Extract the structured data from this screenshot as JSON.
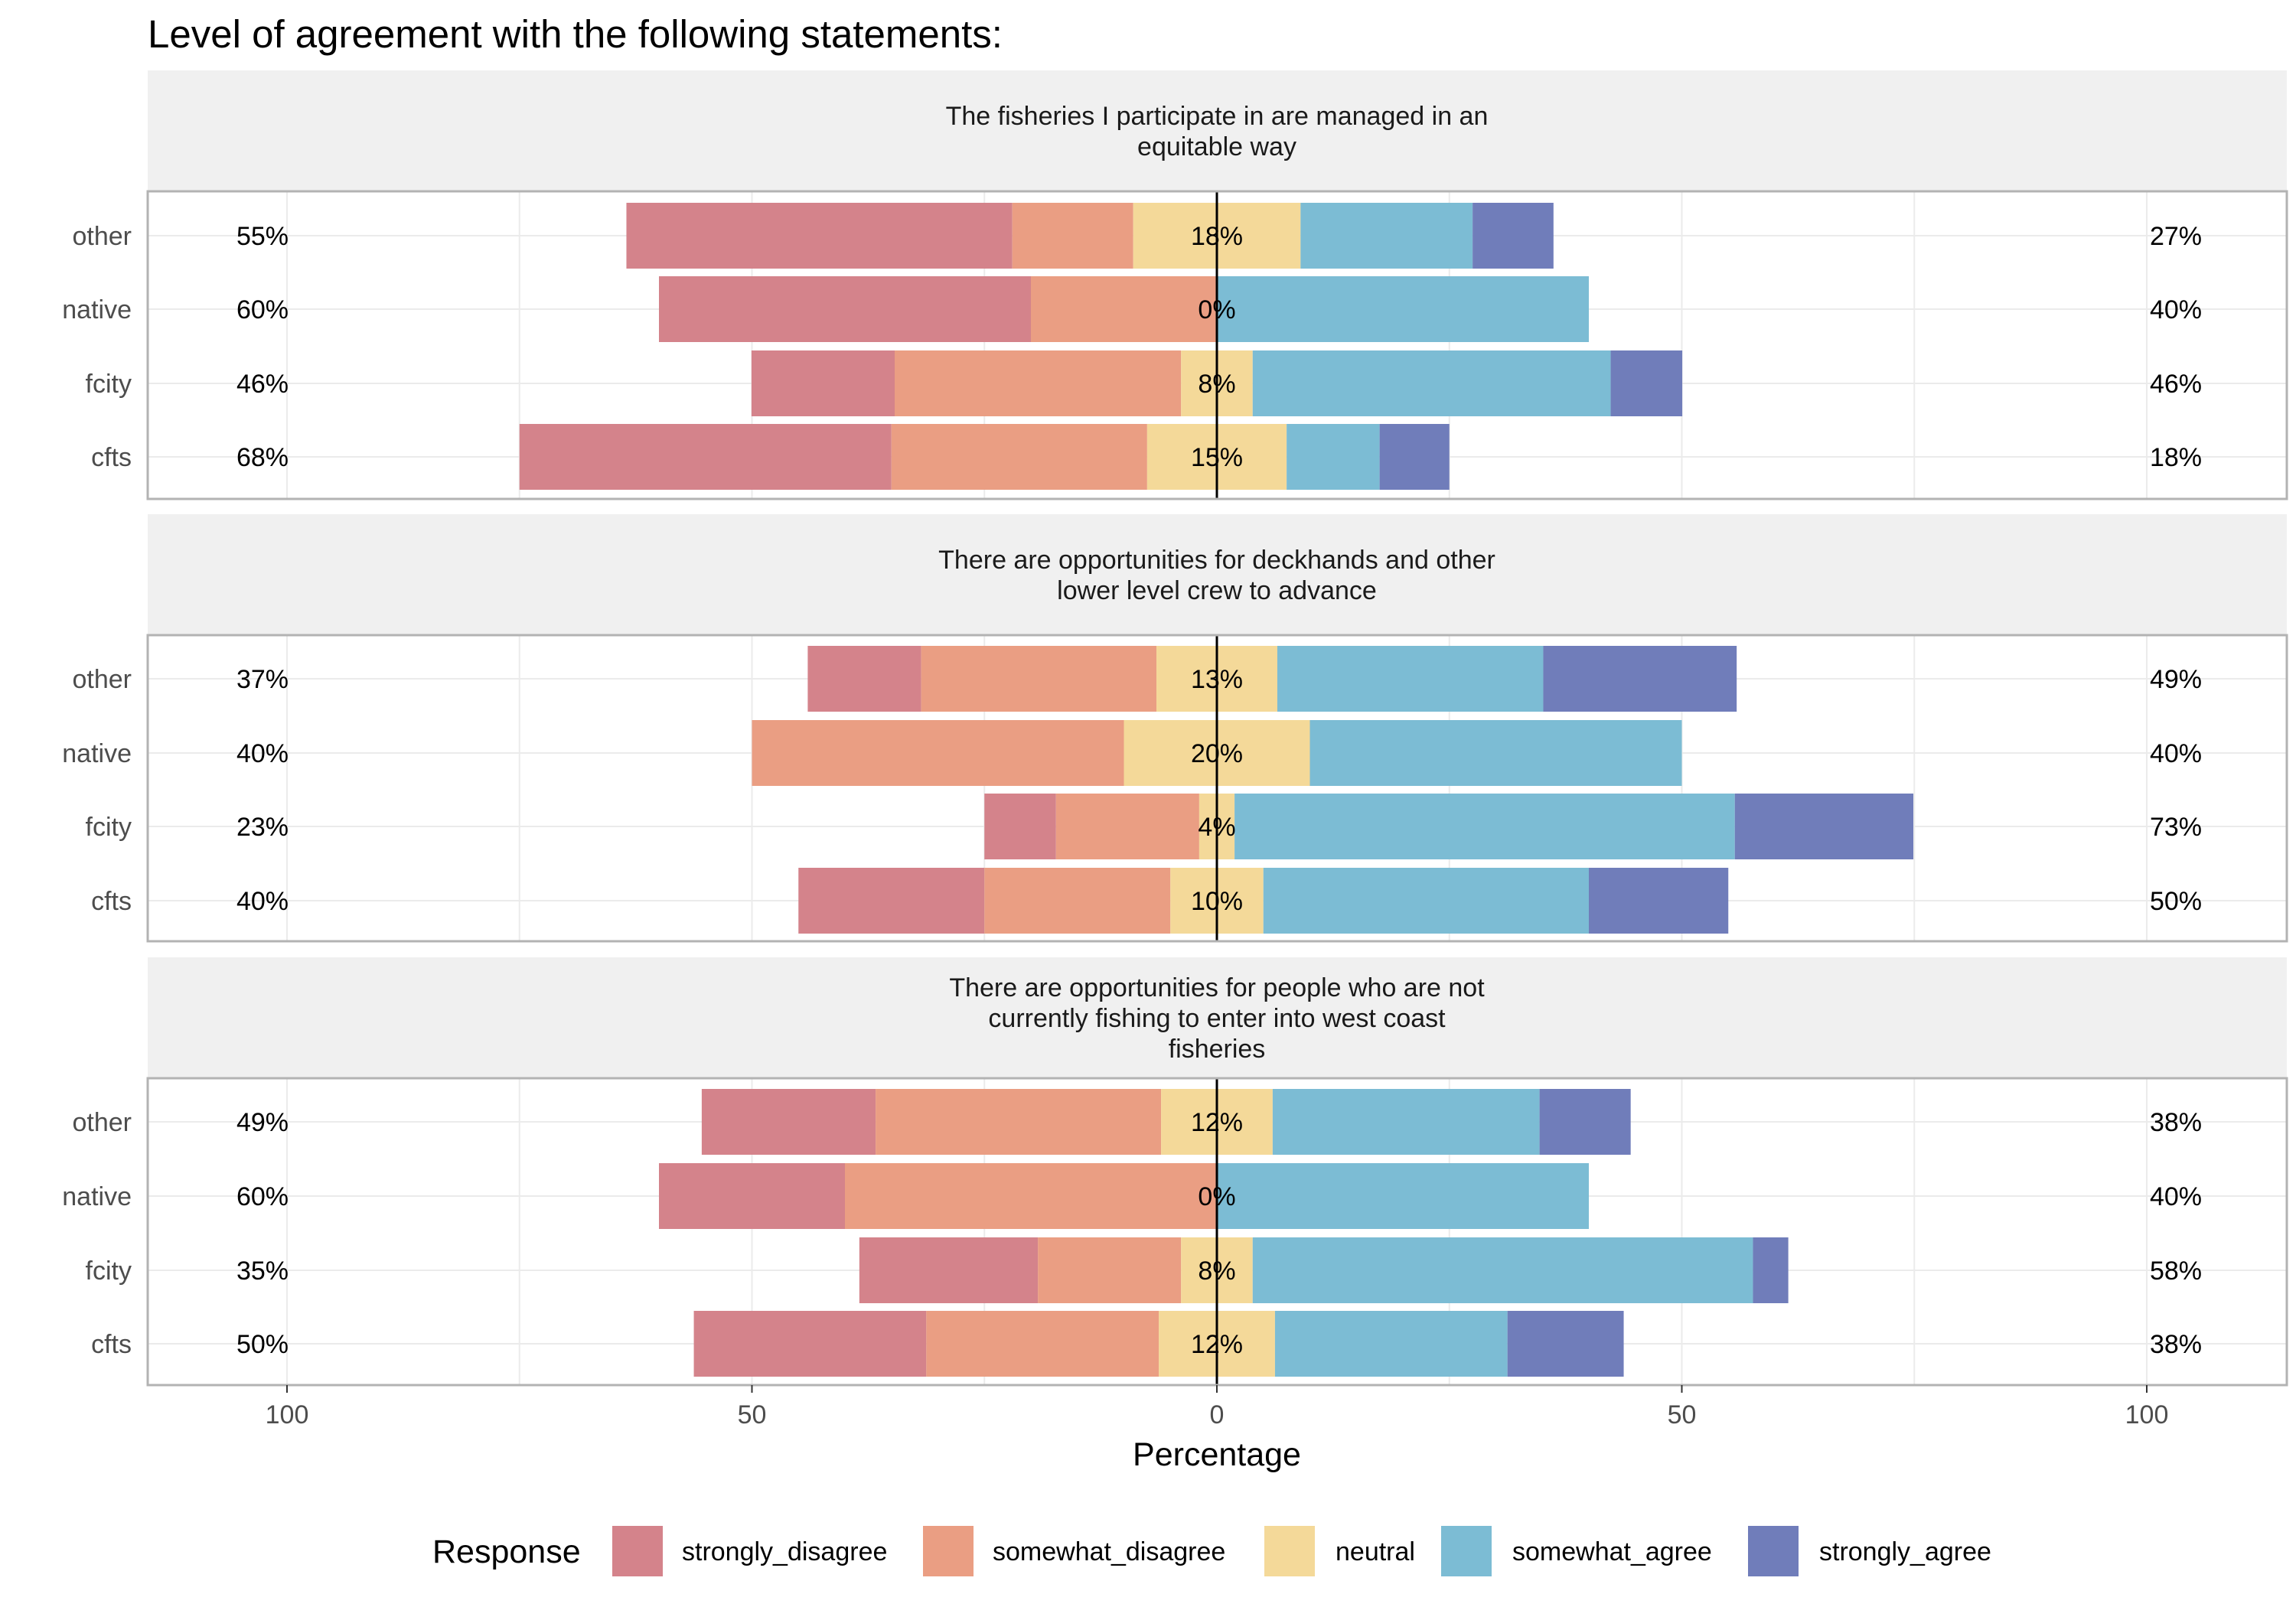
{
  "chart_data": {
    "type": "bar",
    "orientation": "horizontal-diverging-likert",
    "title": "Level of agreement with the following statements:",
    "xlabel": "Percentage",
    "ylabel": "",
    "xlim": [
      -100,
      100
    ],
    "xticks": [
      -100,
      -50,
      0,
      50,
      100
    ],
    "xtick_labels": [
      "100",
      "50",
      "0",
      "50",
      "100"
    ],
    "grid": true,
    "legend": {
      "title": "Response",
      "position": "bottom",
      "entries": [
        "strongly_disagree",
        "somewhat_disagree",
        "neutral",
        "somewhat_agree",
        "strongly_agree"
      ]
    },
    "colors": {
      "strongly_disagree": "#d4838b",
      "somewhat_disagree": "#ea9e83",
      "neutral": "#f4d999",
      "somewhat_agree": "#7cbcd4",
      "strongly_agree": "#707dba"
    },
    "panels": [
      {
        "title": [
          "The fisheries I participate in are managed in an",
          "equitable way"
        ],
        "rows": [
          {
            "group": "other",
            "values": [
              41.5,
              13.0,
              18.0,
              18.5,
              8.7
            ],
            "left_label": "55%",
            "center_label": "18%",
            "right_label": "27%"
          },
          {
            "group": "native",
            "values": [
              40.0,
              20.0,
              0.0,
              40.0,
              0.0
            ],
            "left_label": "60%",
            "center_label": "0%",
            "right_label": "40%"
          },
          {
            "group": "fcity",
            "values": [
              15.4,
              30.8,
              7.7,
              38.5,
              7.7
            ],
            "left_label": "46%",
            "center_label": "8%",
            "right_label": "46%"
          },
          {
            "group": "cfts",
            "values": [
              40.0,
              27.5,
              15.0,
              10.0,
              7.5
            ],
            "left_label": "68%",
            "center_label": "15%",
            "right_label": "18%"
          }
        ]
      },
      {
        "title": [
          "There are opportunities for deckhands and other",
          "lower level crew to advance"
        ],
        "rows": [
          {
            "group": "other",
            "values": [
              12.2,
              25.3,
              13.0,
              28.6,
              20.8
            ],
            "left_label": "37%",
            "center_label": "13%",
            "right_label": "49%"
          },
          {
            "group": "native",
            "values": [
              0.0,
              40.0,
              20.0,
              40.0,
              0.0
            ],
            "left_label": "40%",
            "center_label": "20%",
            "right_label": "40%"
          },
          {
            "group": "fcity",
            "values": [
              7.7,
              15.4,
              3.8,
              53.8,
              19.2
            ],
            "left_label": "23%",
            "center_label": "4%",
            "right_label": "73%"
          },
          {
            "group": "cfts",
            "values": [
              20.0,
              20.0,
              10.0,
              35.0,
              15.0
            ],
            "left_label": "40%",
            "center_label": "10%",
            "right_label": "50%"
          }
        ]
      },
      {
        "title": [
          "There are opportunities for people who are not",
          "currently fishing to enter into west coast",
          "fisheries"
        ],
        "rows": [
          {
            "group": "other",
            "values": [
              18.7,
              30.7,
              12.0,
              28.7,
              9.8
            ],
            "left_label": "49%",
            "center_label": "12%",
            "right_label": "38%"
          },
          {
            "group": "native",
            "values": [
              20.0,
              40.0,
              0.0,
              40.0,
              0.0
            ],
            "left_label": "60%",
            "center_label": "0%",
            "right_label": "40%"
          },
          {
            "group": "fcity",
            "values": [
              19.2,
              15.4,
              7.7,
              53.8,
              3.8
            ],
            "left_label": "35%",
            "center_label": "8%",
            "right_label": "58%"
          },
          {
            "group": "cfts",
            "values": [
              25.0,
              25.0,
              12.5,
              25.0,
              12.5
            ],
            "left_label": "50%",
            "center_label": "12%",
            "right_label": "38%"
          }
        ]
      }
    ]
  }
}
